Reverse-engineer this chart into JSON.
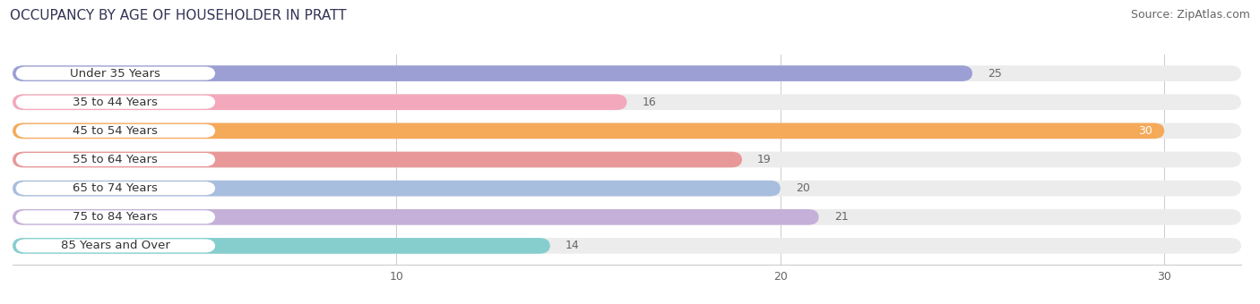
{
  "title": "OCCUPANCY BY AGE OF HOUSEHOLDER IN PRATT",
  "source": "Source: ZipAtlas.com",
  "categories": [
    "Under 35 Years",
    "35 to 44 Years",
    "45 to 54 Years",
    "55 to 64 Years",
    "65 to 74 Years",
    "75 to 84 Years",
    "85 Years and Over"
  ],
  "values": [
    25,
    16,
    30,
    19,
    20,
    21,
    14
  ],
  "bar_colors": [
    "#9b9fd4",
    "#f4a8bc",
    "#f5aa5a",
    "#e89898",
    "#a8bede",
    "#c4b0d8",
    "#86cece"
  ],
  "bar_bg_color": "#ececec",
  "label_bg_color": "#ffffff",
  "xlim_max": 32,
  "xticks": [
    10,
    20,
    30
  ],
  "label_inside_color": "#ffffff",
  "label_outside_color": "#666666",
  "value_threshold": 27,
  "title_fontsize": 11,
  "source_fontsize": 9,
  "tick_fontsize": 9,
  "bar_label_fontsize": 9,
  "category_fontsize": 9.5,
  "figsize": [
    14.06,
    3.4
  ],
  "dpi": 100,
  "bar_height": 0.55,
  "bg_color": "#ffffff"
}
